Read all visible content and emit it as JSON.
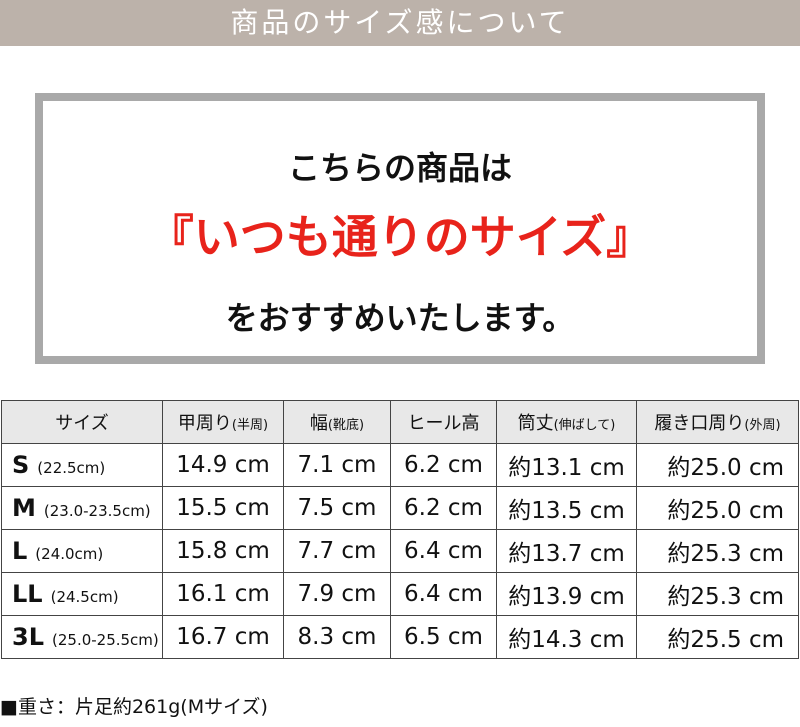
{
  "banner": "商品のサイズ感について",
  "box": {
    "line1": "こちらの商品は",
    "line2": "『いつも通りのサイズ』",
    "line3": "をおすすめいたします。"
  },
  "colors": {
    "banner": "#bcb2aa",
    "accent": "#e8231b",
    "border": "#a9a9a9"
  },
  "table": {
    "headers": [
      {
        "main": "サイズ",
        "sub": ""
      },
      {
        "main": "甲周り",
        "sub": "(半周)"
      },
      {
        "main": "幅",
        "sub": "(靴底)"
      },
      {
        "main": "ヒール高",
        "sub": ""
      },
      {
        "main": "筒丈",
        "sub": "(伸ばして)"
      },
      {
        "main": "履き口周り",
        "sub": "(外周)"
      }
    ],
    "rows": [
      {
        "size": "S",
        "range": "(22.5cm)",
        "instep": "14.9 cm",
        "width": "7.1 cm",
        "heel": "6.2 cm",
        "shaft": "約13.1 cm",
        "opening": "約25.0 cm"
      },
      {
        "size": "M",
        "range": "(23.0-23.5cm)",
        "instep": "15.5 cm",
        "width": "7.5 cm",
        "heel": "6.2 cm",
        "shaft": "約13.5 cm",
        "opening": "約25.0 cm"
      },
      {
        "size": "L",
        "range": "(24.0cm)",
        "instep": "15.8 cm",
        "width": "7.7 cm",
        "heel": "6.4 cm",
        "shaft": "約13.7 cm",
        "opening": "約25.3 cm"
      },
      {
        "size": "LL",
        "range": "(24.5cm)",
        "instep": "16.1 cm",
        "width": "7.9 cm",
        "heel": "6.4 cm",
        "shaft": "約13.9 cm",
        "opening": "約25.3 cm"
      },
      {
        "size": "3L",
        "range": "(25.0-25.5cm)",
        "instep": "16.7 cm",
        "width": "8.3 cm",
        "heel": "6.5 cm",
        "shaft": "約14.3 cm",
        "opening": "約25.5 cm"
      }
    ]
  },
  "note": "■重さ：片足約261g(Mサイズ)"
}
